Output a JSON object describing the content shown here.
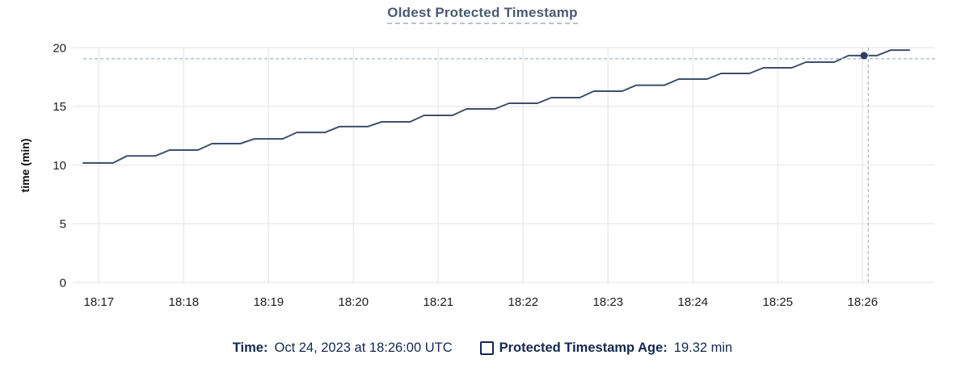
{
  "chart_data": {
    "type": "line",
    "title": "Oldest Protected Timestamp",
    "xlabel": "",
    "ylabel": "time (min)",
    "ylim": [
      0,
      20
    ],
    "y_ticks": [
      0,
      5,
      10,
      15,
      20
    ],
    "grid": true,
    "t_units": "seconds after 18:17:00",
    "x_ticks": [
      {
        "label": "18:17",
        "t": 0
      },
      {
        "label": "18:18",
        "t": 60
      },
      {
        "label": "18:19",
        "t": 120
      },
      {
        "label": "18:20",
        "t": 180
      },
      {
        "label": "18:21",
        "t": 240
      },
      {
        "label": "18:22",
        "t": 300
      },
      {
        "label": "18:23",
        "t": 360
      },
      {
        "label": "18:24",
        "t": 420
      },
      {
        "label": "18:25",
        "t": 480
      },
      {
        "label": "18:26",
        "t": 540
      }
    ],
    "series": [
      {
        "name": "Protected Timestamp Age",
        "color": "#3f4f6a",
        "points": [
          [
            -11,
            10.17
          ],
          [
            10,
            10.17
          ],
          [
            20,
            10.78
          ],
          [
            40,
            10.78
          ],
          [
            50,
            11.27
          ],
          [
            70,
            11.27
          ],
          [
            80,
            11.82
          ],
          [
            100,
            11.82
          ],
          [
            110,
            12.23
          ],
          [
            130,
            12.23
          ],
          [
            140,
            12.78
          ],
          [
            160,
            12.78
          ],
          [
            170,
            13.27
          ],
          [
            190,
            13.27
          ],
          [
            200,
            13.68
          ],
          [
            220,
            13.68
          ],
          [
            230,
            14.23
          ],
          [
            250,
            14.23
          ],
          [
            260,
            14.78
          ],
          [
            280,
            14.78
          ],
          [
            290,
            15.26
          ],
          [
            310,
            15.26
          ],
          [
            320,
            15.74
          ],
          [
            340,
            15.74
          ],
          [
            350,
            16.29
          ],
          [
            370,
            16.29
          ],
          [
            380,
            16.8
          ],
          [
            400,
            16.8
          ],
          [
            410,
            17.32
          ],
          [
            430,
            17.32
          ],
          [
            440,
            17.8
          ],
          [
            460,
            17.8
          ],
          [
            470,
            18.28
          ],
          [
            490,
            18.28
          ],
          [
            500,
            18.76
          ],
          [
            520,
            18.76
          ],
          [
            530,
            19.32
          ],
          [
            550,
            19.32
          ],
          [
            560,
            19.79
          ],
          [
            573,
            19.79
          ]
        ]
      }
    ],
    "crosshair": {
      "t": 544,
      "hline_value": 19.05,
      "color": "#a9bccb",
      "point": {
        "t": 541,
        "value": 19.32
      }
    },
    "highlight_point_color": "#2c3c59",
    "tooltip": {
      "time_label": "Time:",
      "time_value": "Oct 24, 2023 at 18:26:00 UTC",
      "series_label": "Protected Timestamp Age:",
      "series_value": "19.32 min"
    }
  },
  "colors": {
    "title": "#4a5a73",
    "legend_text": "#13294e",
    "tick_text": "#1c1c1c",
    "gridline": "#ececec",
    "background": "#ffffff"
  }
}
